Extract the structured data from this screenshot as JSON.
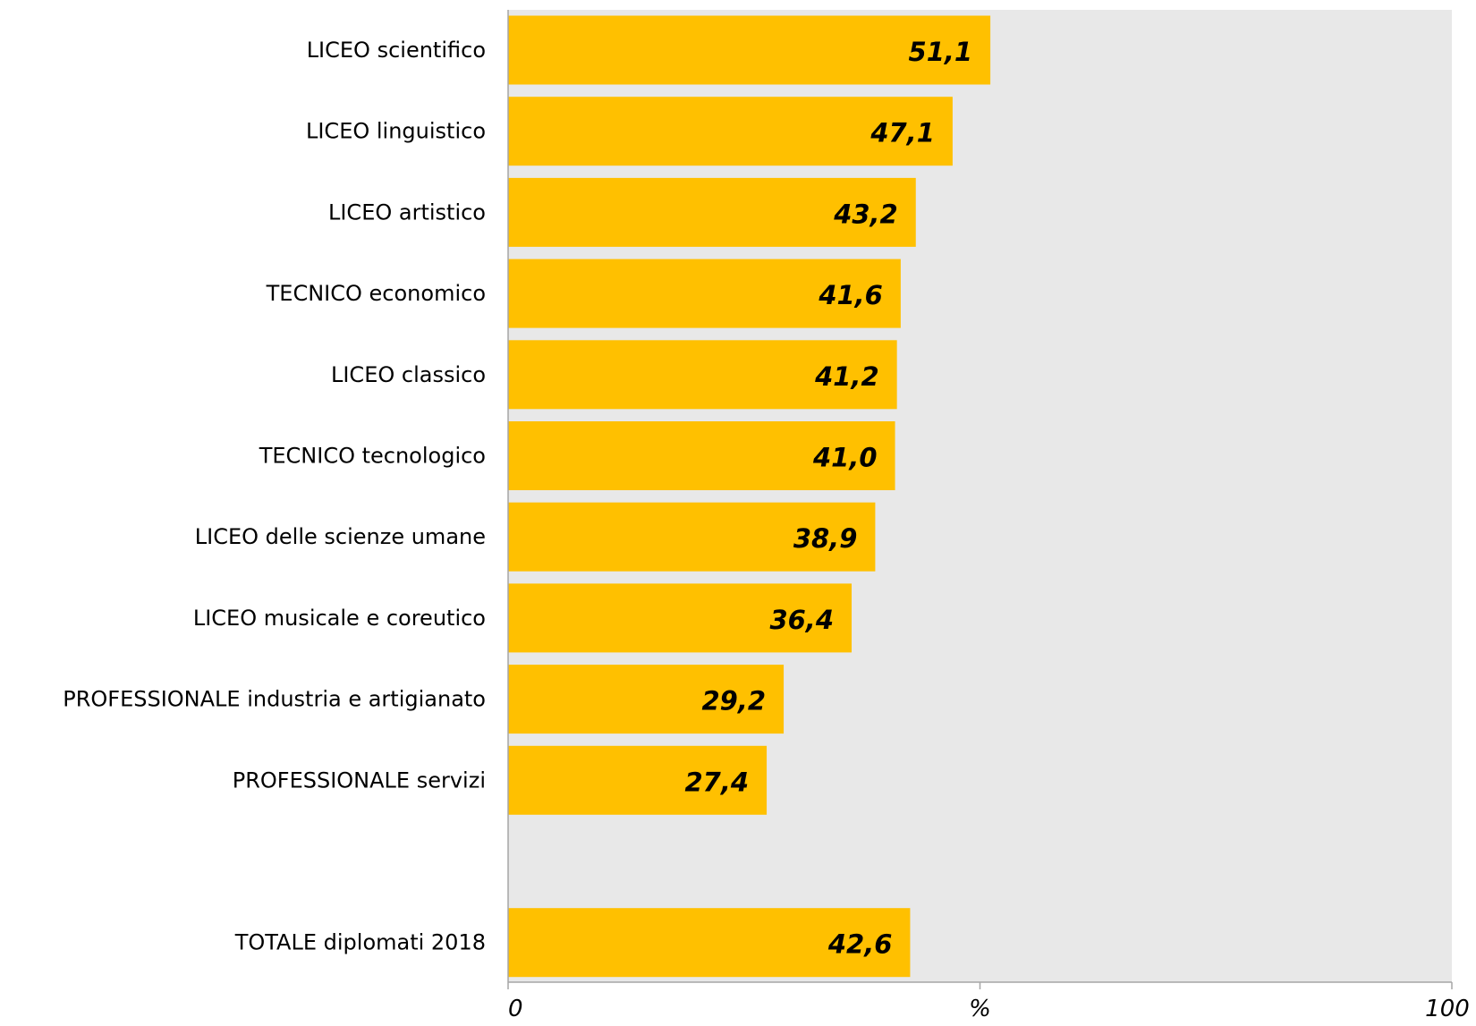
{
  "chart_data": {
    "type": "bar",
    "orientation": "horizontal",
    "categories": [
      "LICEO scientifico",
      "LICEO linguistico",
      "LICEO artistico",
      "TECNICO economico",
      "LICEO classico",
      "TECNICO tecnologico",
      "LICEO delle scienze umane",
      "LICEO musicale e coreutico",
      "PROFESSIONALE industria e artigianato",
      "PROFESSIONALE servizi",
      "TOTALE diplomati 2018"
    ],
    "values": [
      51.1,
      47.1,
      43.2,
      41.6,
      41.2,
      41.0,
      38.9,
      36.4,
      29.2,
      27.4,
      42.6
    ],
    "value_labels": [
      "51,1",
      "47,1",
      "43,2",
      "41,6",
      "41,2",
      "41,0",
      "38,9",
      "36,4",
      "29,2",
      "27,4",
      "42,6"
    ],
    "title": "",
    "xlabel": "%",
    "ylabel": "",
    "xlim": [
      0,
      100
    ],
    "x_ticks": [
      "0",
      "%",
      "100"
    ],
    "gap_before_last_category": true,
    "grid": false,
    "colors": {
      "bar": "#FFC000",
      "plot_background": "#E8E8E8",
      "axis": "#A6A6A6"
    }
  }
}
